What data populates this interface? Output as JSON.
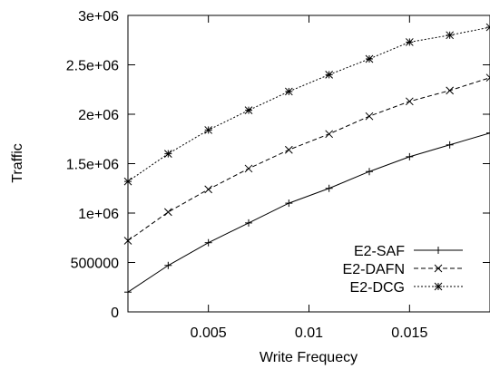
{
  "chart_data": {
    "type": "line",
    "title": "",
    "xlabel": "Write Frequecy",
    "ylabel": "Traffic",
    "xlim": [
      0.001,
      0.019
    ],
    "ylim": [
      0,
      3000000
    ],
    "x_ticks": [
      0.005,
      0.01,
      0.015
    ],
    "x_tick_labels": [
      "0.005",
      "0.01",
      "0.015"
    ],
    "y_ticks": [
      0,
      500000,
      1000000,
      1500000,
      2000000,
      2500000,
      3000000
    ],
    "y_tick_labels": [
      "0",
      "500000",
      "1e+06",
      "1.5e+06",
      "2e+06",
      "2.5e+06",
      "3e+06"
    ],
    "grid": false,
    "legend_position": "bottom-right",
    "x": [
      0.001,
      0.003,
      0.005,
      0.007,
      0.009,
      0.011,
      0.013,
      0.015,
      0.017,
      0.019
    ],
    "series": [
      {
        "name": "E2-SAF",
        "marker": "plus",
        "dash": "solid",
        "color": "#000000",
        "values": [
          200000,
          470000,
          700000,
          900000,
          1100000,
          1250000,
          1420000,
          1570000,
          1690000,
          1810000
        ]
      },
      {
        "name": "E2-DAFN",
        "marker": "cross",
        "dash": "dashed",
        "color": "#000000",
        "values": [
          720000,
          1010000,
          1240000,
          1450000,
          1640000,
          1800000,
          1980000,
          2130000,
          2240000,
          2370000
        ]
      },
      {
        "name": "E2-DCG",
        "marker": "star",
        "dash": "dotted",
        "color": "#000000",
        "values": [
          1320000,
          1600000,
          1840000,
          2040000,
          2230000,
          2400000,
          2560000,
          2730000,
          2800000,
          2880000
        ]
      }
    ]
  }
}
